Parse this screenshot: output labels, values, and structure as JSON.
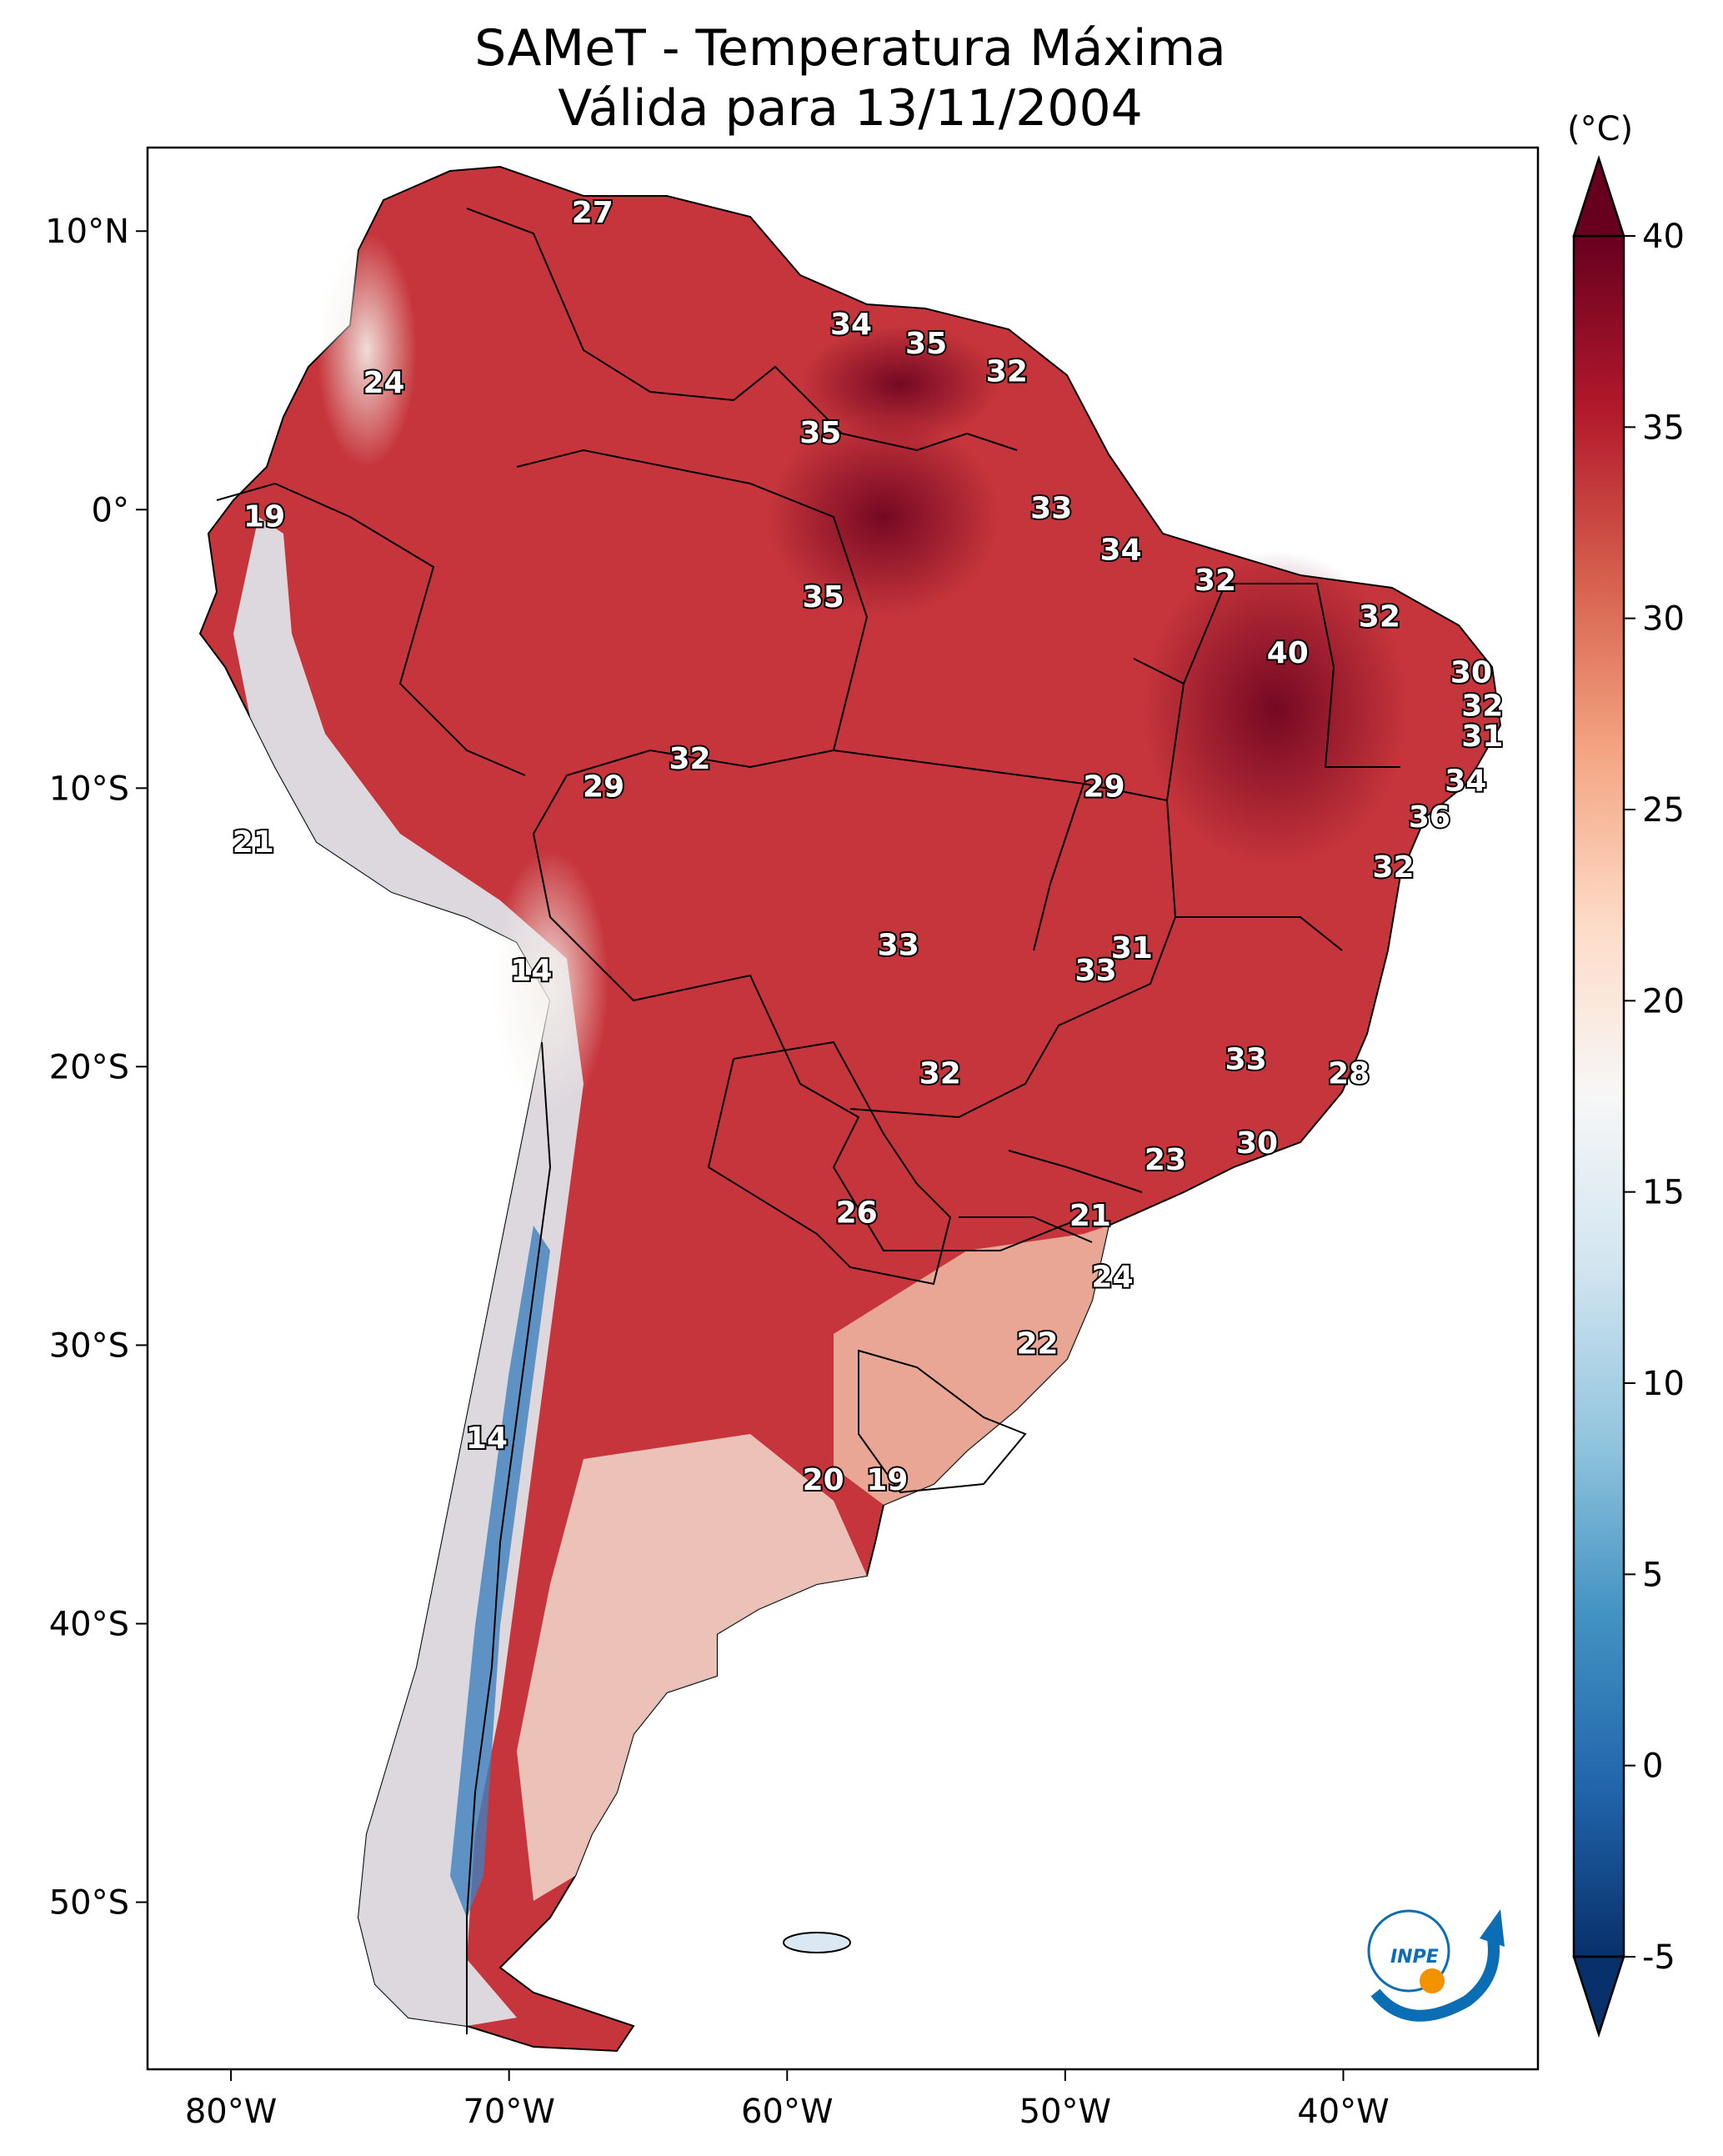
{
  "title_line1": "SAMeT - Temperatura Máxima",
  "title_line2": "Válida para 13/11/2004",
  "colorbar": {
    "unit": "(°C)",
    "min": -5,
    "max": 40,
    "ticks": [
      "40",
      "35",
      "30",
      "25",
      "20",
      "15",
      "10",
      "5",
      "0",
      "-5"
    ],
    "tick_values": [
      40,
      35,
      30,
      25,
      20,
      15,
      10,
      5,
      0,
      -5
    ],
    "colormap": "RdBu_r",
    "stops": [
      "#08306b",
      "#2166ac",
      "#4393c3",
      "#92c5de",
      "#d1e5f0",
      "#f7f7f7",
      "#fddbc7",
      "#f4a582",
      "#d6604d",
      "#b2182b",
      "#67001f"
    ]
  },
  "axes": {
    "lon_ticks": [
      "80°W",
      "70°W",
      "60°W",
      "50°W",
      "40°W"
    ],
    "lon_values": [
      -80,
      -70,
      -60,
      -50,
      -40
    ],
    "lat_ticks": [
      "10°N",
      "0°",
      "10°S",
      "20°S",
      "30°S",
      "40°S",
      "50°S"
    ],
    "lat_values": [
      10,
      0,
      -10,
      -20,
      -30,
      -40,
      -50
    ],
    "lon_range": [
      -83,
      -33
    ],
    "lat_range": [
      13,
      -56
    ]
  },
  "logo": {
    "text": "INPE",
    "color": "#0b6db3",
    "dot_color": "#f39200"
  },
  "chart_data": {
    "type": "heatmap",
    "title": "SAMeT - Temperatura Máxima Válida para 13/11/2004",
    "unit": "°C",
    "labels": [
      {
        "value": "27",
        "lon": -67.0,
        "lat": 10.6
      },
      {
        "value": "24",
        "lon": -74.5,
        "lat": 4.5
      },
      {
        "value": "34",
        "lon": -57.7,
        "lat": 6.6
      },
      {
        "value": "35",
        "lon": -55.0,
        "lat": 5.9
      },
      {
        "value": "32",
        "lon": -52.1,
        "lat": 4.9
      },
      {
        "value": "35",
        "lon": -58.8,
        "lat": 2.7
      },
      {
        "value": "33",
        "lon": -50.5,
        "lat": 0.0
      },
      {
        "value": "19",
        "lon": -78.8,
        "lat": -0.3
      },
      {
        "value": "34",
        "lon": -48.0,
        "lat": -1.5
      },
      {
        "value": "32",
        "lon": -44.6,
        "lat": -2.6
      },
      {
        "value": "35",
        "lon": -58.7,
        "lat": -3.2
      },
      {
        "value": "32",
        "lon": -38.7,
        "lat": -3.9
      },
      {
        "value": "40",
        "lon": -42.0,
        "lat": -5.2
      },
      {
        "value": "30",
        "lon": -35.4,
        "lat": -5.9
      },
      {
        "value": "32",
        "lon": -35.0,
        "lat": -7.1
      },
      {
        "value": "31",
        "lon": -35.0,
        "lat": -8.2
      },
      {
        "value": "32",
        "lon": -63.5,
        "lat": -9.0
      },
      {
        "value": "29",
        "lon": -66.6,
        "lat": -10.0
      },
      {
        "value": "29",
        "lon": -48.6,
        "lat": -10.0
      },
      {
        "value": "34",
        "lon": -35.6,
        "lat": -9.8
      },
      {
        "value": "36",
        "lon": -36.9,
        "lat": -11.1
      },
      {
        "value": "21",
        "lon": -79.2,
        "lat": -12.0
      },
      {
        "value": "32",
        "lon": -38.2,
        "lat": -12.9
      },
      {
        "value": "33",
        "lon": -56.0,
        "lat": -15.7
      },
      {
        "value": "31",
        "lon": -47.6,
        "lat": -15.8
      },
      {
        "value": "14",
        "lon": -69.2,
        "lat": -16.6
      },
      {
        "value": "33",
        "lon": -48.9,
        "lat": -16.6
      },
      {
        "value": "33",
        "lon": -43.5,
        "lat": -19.8
      },
      {
        "value": "32",
        "lon": -54.5,
        "lat": -20.3
      },
      {
        "value": "28",
        "lon": -39.8,
        "lat": -20.3
      },
      {
        "value": "30",
        "lon": -43.1,
        "lat": -22.8
      },
      {
        "value": "23",
        "lon": -46.4,
        "lat": -23.4
      },
      {
        "value": "26",
        "lon": -57.5,
        "lat": -25.3
      },
      {
        "value": "21",
        "lon": -49.1,
        "lat": -25.4
      },
      {
        "value": "24",
        "lon": -48.3,
        "lat": -27.6
      },
      {
        "value": "22",
        "lon": -51.0,
        "lat": -30.0
      },
      {
        "value": "14",
        "lon": -70.8,
        "lat": -33.4
      },
      {
        "value": "20",
        "lon": -58.7,
        "lat": -34.9
      },
      {
        "value": "19",
        "lon": -56.4,
        "lat": -34.9
      }
    ]
  }
}
